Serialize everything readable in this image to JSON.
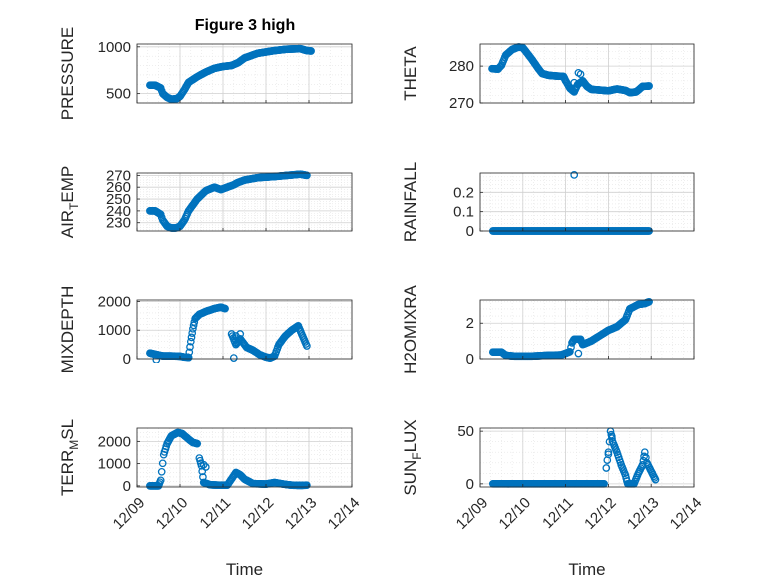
{
  "figure": {
    "title": "Figure 3 high"
  },
  "style": {
    "marker_color": "#0072BD",
    "axis_color": "#262626",
    "grid_color": "#d0d0d0",
    "background": "#ffffff"
  },
  "chart_data": [
    {
      "id": "pressure",
      "type": "scatter",
      "ylabel": "PRESSURE",
      "ylabel_sub": "",
      "xlim": [
        0,
        5
      ],
      "ylim": [
        400,
        1030
      ],
      "yticks": [
        500,
        1000
      ],
      "ytick_labels": [
        "500",
        "1000"
      ],
      "x_tick_labels": [],
      "xlabel": "",
      "grid": true,
      "minor_grid": true,
      "curve": [
        [
          0.3,
          590
        ],
        [
          0.42,
          590
        ],
        [
          0.55,
          560
        ],
        [
          0.6,
          500
        ],
        [
          0.7,
          460
        ],
        [
          0.8,
          440
        ],
        [
          0.92,
          445
        ],
        [
          1.0,
          470
        ],
        [
          1.1,
          540
        ],
        [
          1.2,
          620
        ],
        [
          1.4,
          680
        ],
        [
          1.6,
          730
        ],
        [
          1.8,
          770
        ],
        [
          2.0,
          790
        ],
        [
          2.2,
          800
        ],
        [
          2.35,
          830
        ],
        [
          2.5,
          880
        ],
        [
          2.8,
          930
        ],
        [
          3.2,
          960
        ],
        [
          3.5,
          975
        ],
        [
          3.8,
          980
        ],
        [
          3.95,
          960
        ],
        [
          4.05,
          955
        ]
      ]
    },
    {
      "id": "theta",
      "type": "scatter",
      "ylabel": "THETA",
      "ylabel_sub": "",
      "xlim": [
        0,
        5
      ],
      "ylim": [
        270,
        286
      ],
      "yticks": [
        270,
        280
      ],
      "ytick_labels": [
        "270",
        "280"
      ],
      "x_tick_labels": [],
      "xlabel": "",
      "grid": true,
      "minor_grid": true,
      "curve": [
        [
          0.28,
          279.3
        ],
        [
          0.42,
          279.2
        ],
        [
          0.5,
          280.2
        ],
        [
          0.6,
          283
        ],
        [
          0.75,
          284.5
        ],
        [
          0.9,
          285.2
        ],
        [
          1.0,
          285
        ],
        [
          1.1,
          283.5
        ],
        [
          1.2,
          282
        ],
        [
          1.35,
          279.5
        ],
        [
          1.45,
          278
        ],
        [
          1.6,
          277.5
        ],
        [
          1.8,
          277.3
        ],
        [
          1.95,
          277.2
        ],
        [
          2.0,
          276
        ],
        [
          2.1,
          274
        ],
        [
          2.2,
          273
        ],
        [
          2.28,
          275
        ],
        [
          2.4,
          276
        ],
        [
          2.5,
          274.5
        ],
        [
          2.6,
          273.7
        ],
        [
          2.8,
          273.5
        ],
        [
          3.0,
          273.3
        ],
        [
          3.2,
          273.8
        ],
        [
          3.4,
          273.4
        ],
        [
          3.5,
          272.8
        ],
        [
          3.65,
          273
        ],
        [
          3.8,
          274.5
        ],
        [
          3.95,
          274.6
        ]
      ],
      "extra": [
        [
          2.3,
          278.2
        ],
        [
          2.35,
          277.8
        ],
        [
          2.2,
          275.5
        ]
      ]
    },
    {
      "id": "air_temp",
      "type": "scatter",
      "ylabel": "AIR",
      "ylabel_sub": "T",
      "ylabel_tail": "EMP",
      "xlim": [
        0,
        5
      ],
      "ylim": [
        223,
        272
      ],
      "yticks": [
        230,
        240,
        250,
        260,
        270
      ],
      "ytick_labels": [
        "230",
        "240",
        "250",
        "260",
        "270"
      ],
      "x_tick_labels": [],
      "xlabel": "",
      "grid": true,
      "minor_grid": true,
      "curve": [
        [
          0.3,
          240
        ],
        [
          0.42,
          240
        ],
        [
          0.55,
          237
        ],
        [
          0.6,
          232
        ],
        [
          0.7,
          227
        ],
        [
          0.8,
          225.5
        ],
        [
          0.9,
          225.5
        ],
        [
          1.0,
          227
        ],
        [
          1.1,
          232
        ],
        [
          1.2,
          240
        ],
        [
          1.4,
          250
        ],
        [
          1.6,
          257
        ],
        [
          1.8,
          260
        ],
        [
          1.95,
          258
        ],
        [
          2.1,
          260
        ],
        [
          2.25,
          262
        ],
        [
          2.35,
          264
        ],
        [
          2.5,
          266
        ],
        [
          2.8,
          268
        ],
        [
          3.2,
          269
        ],
        [
          3.5,
          270
        ],
        [
          3.8,
          271
        ],
        [
          3.95,
          270
        ]
      ]
    },
    {
      "id": "rainfall",
      "type": "scatter",
      "ylabel": "RAINFALL",
      "ylabel_sub": "",
      "xlim": [
        0,
        5
      ],
      "ylim": [
        0,
        0.3
      ],
      "yticks": [
        0,
        0.1,
        0.2
      ],
      "ytick_labels": [
        "0",
        "0.1",
        "0.2"
      ],
      "x_tick_labels": [],
      "xlabel": "",
      "grid": true,
      "minor_grid": true,
      "curve": [
        [
          0.3,
          0
        ],
        [
          3.95,
          0
        ]
      ],
      "extra": [
        [
          2.2,
          0.29
        ]
      ]
    },
    {
      "id": "mixdepth",
      "type": "scatter",
      "ylabel": "MIXDEPTH",
      "ylabel_sub": "",
      "xlim": [
        0,
        5
      ],
      "ylim": [
        0,
        2050
      ],
      "yticks": [
        0,
        1000,
        2000
      ],
      "ytick_labels": [
        "0",
        "1000",
        "2000"
      ],
      "x_tick_labels": [],
      "xlabel": "",
      "grid": true,
      "minor_grid": true,
      "curve": [
        [
          0.3,
          200
        ],
        [
          0.45,
          150
        ],
        [
          0.6,
          100
        ],
        [
          0.8,
          100
        ],
        [
          1.0,
          90
        ],
        [
          1.1,
          60
        ],
        [
          1.2,
          50
        ],
        [
          1.25,
          600
        ],
        [
          1.3,
          1050
        ],
        [
          1.35,
          1400
        ],
        [
          1.45,
          1550
        ],
        [
          1.6,
          1650
        ],
        [
          1.8,
          1750
        ],
        [
          1.95,
          1800
        ],
        [
          2.05,
          1750
        ]
      ],
      "curve2": [
        [
          2.2,
          870
        ],
        [
          2.3,
          500
        ],
        [
          2.4,
          700
        ],
        [
          2.55,
          400
        ],
        [
          2.7,
          300
        ],
        [
          2.85,
          150
        ],
        [
          3.0,
          60
        ],
        [
          3.1,
          30
        ],
        [
          3.2,
          100
        ],
        [
          3.3,
          500
        ],
        [
          3.45,
          800
        ],
        [
          3.6,
          1000
        ],
        [
          3.75,
          1150
        ],
        [
          3.85,
          800
        ],
        [
          3.95,
          450
        ]
      ],
      "extra": [
        [
          0.45,
          -30
        ],
        [
          1.2,
          50
        ],
        [
          2.25,
          30
        ],
        [
          2.3,
          800
        ],
        [
          2.4,
          870
        ]
      ]
    },
    {
      "id": "h2omixra",
      "type": "scatter",
      "ylabel": "H2OMIXRA",
      "ylabel_sub": "",
      "xlim": [
        0,
        5
      ],
      "ylim": [
        0,
        3.3
      ],
      "yticks": [
        0,
        2
      ],
      "ytick_labels": [
        "0",
        "2"
      ],
      "x_tick_labels": [],
      "xlabel": "",
      "grid": true,
      "minor_grid": true,
      "curve": [
        [
          0.3,
          0.38
        ],
        [
          0.5,
          0.38
        ],
        [
          0.6,
          0.2
        ],
        [
          0.8,
          0.15
        ],
        [
          1.2,
          0.15
        ],
        [
          1.6,
          0.2
        ],
        [
          1.9,
          0.22
        ],
        [
          2.1,
          0.4
        ],
        [
          2.15,
          0.9
        ],
        [
          2.2,
          1.1
        ],
        [
          2.35,
          1.1
        ],
        [
          2.4,
          0.8
        ],
        [
          2.5,
          0.9
        ],
        [
          2.6,
          1.0
        ],
        [
          2.8,
          1.3
        ],
        [
          3.0,
          1.6
        ],
        [
          3.2,
          1.8
        ],
        [
          3.4,
          2.2
        ],
        [
          3.5,
          2.8
        ],
        [
          3.7,
          3.05
        ],
        [
          3.85,
          3.1
        ],
        [
          3.95,
          3.2
        ]
      ],
      "extra": [
        [
          2.3,
          0.3
        ]
      ]
    },
    {
      "id": "terr_msl",
      "type": "scatter",
      "ylabel": "TERR",
      "ylabel_sub": "M",
      "ylabel_tail": "SL",
      "xlim": [
        0,
        5
      ],
      "ylim": [
        -50,
        2600
      ],
      "yticks": [
        0,
        1000,
        2000
      ],
      "ytick_labels": [
        "0",
        "1000",
        "2000"
      ],
      "x_tick_labels": [
        "12/09",
        "12/10",
        "12/11",
        "12/12",
        "12/13",
        "12/14"
      ],
      "xlabel": "Time",
      "grid": true,
      "minor_grid": true,
      "curve": [
        [
          0.3,
          0
        ],
        [
          0.5,
          0
        ],
        [
          0.55,
          250
        ],
        [
          0.62,
          1400
        ],
        [
          0.7,
          1900
        ],
        [
          0.8,
          2250
        ],
        [
          0.95,
          2400
        ],
        [
          1.05,
          2350
        ],
        [
          1.2,
          2100
        ],
        [
          1.3,
          1950
        ],
        [
          1.4,
          1900
        ]
      ],
      "curve2": [
        [
          1.45,
          1250
        ],
        [
          1.5,
          900
        ],
        [
          1.55,
          150
        ],
        [
          1.7,
          50
        ],
        [
          1.9,
          30
        ],
        [
          2.1,
          30
        ],
        [
          2.3,
          600
        ],
        [
          2.4,
          500
        ],
        [
          2.5,
          300
        ],
        [
          2.7,
          100
        ],
        [
          3.0,
          80
        ],
        [
          3.2,
          150
        ],
        [
          3.4,
          80
        ],
        [
          3.6,
          30
        ],
        [
          3.8,
          20
        ],
        [
          3.95,
          30
        ]
      ],
      "extra": [
        [
          1.55,
          950
        ],
        [
          1.6,
          850
        ]
      ]
    },
    {
      "id": "sun_flux",
      "type": "scatter",
      "ylabel": "SUN",
      "ylabel_sub": "F",
      "ylabel_tail": "LUX",
      "xlim": [
        0,
        5
      ],
      "ylim": [
        -3,
        53
      ],
      "yticks": [
        0,
        50
      ],
      "ytick_labels": [
        "0",
        "50"
      ],
      "x_tick_labels": [
        "12/09",
        "12/10",
        "12/11",
        "12/12",
        "12/13",
        "12/14"
      ],
      "xlabel": "Time",
      "grid": true,
      "minor_grid": true,
      "curve": [
        [
          0.3,
          0
        ],
        [
          2.9,
          0
        ]
      ],
      "curve2": [
        [
          2.95,
          15
        ],
        [
          3.0,
          30
        ],
        [
          3.05,
          50
        ],
        [
          3.1,
          40
        ],
        [
          3.2,
          30
        ],
        [
          3.3,
          18
        ],
        [
          3.4,
          8
        ],
        [
          3.45,
          0
        ],
        [
          3.6,
          0
        ],
        [
          3.7,
          10
        ],
        [
          3.8,
          18
        ],
        [
          3.85,
          30
        ],
        [
          3.9,
          20
        ],
        [
          4.0,
          12
        ],
        [
          4.1,
          4
        ]
      ],
      "extra": [
        [
          3.0,
          28
        ],
        [
          3.08,
          45
        ]
      ]
    }
  ]
}
